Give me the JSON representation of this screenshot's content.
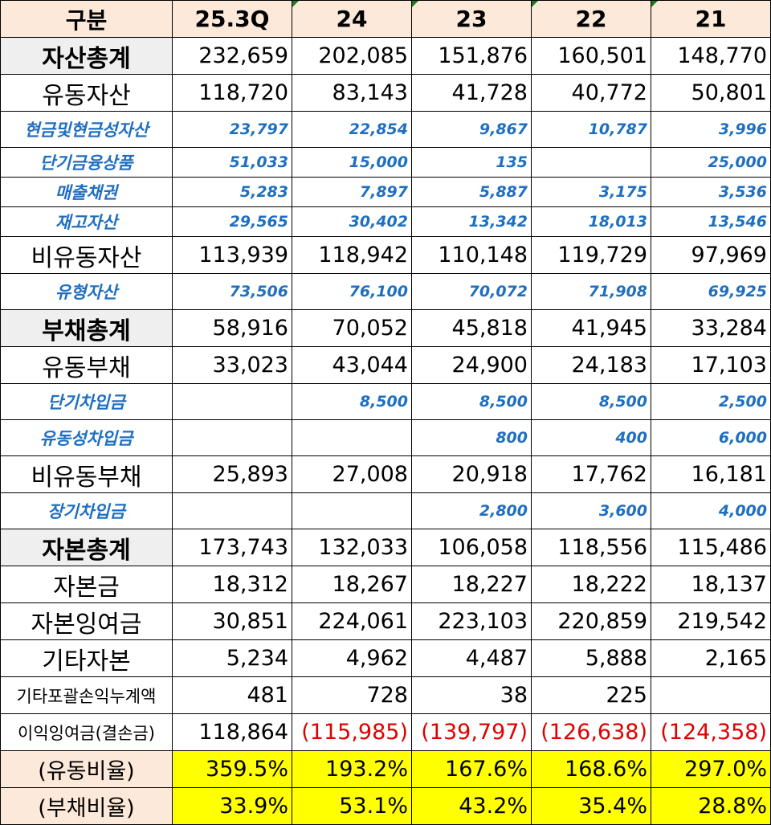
{
  "header": [
    "구분",
    "25.3Q",
    "24",
    "23",
    "22",
    "21"
  ],
  "rows": [
    {
      "label": "자산총계",
      "values": [
        "232,659",
        "202,085",
        "151,876",
        "160,501",
        "148,770"
      ]
    },
    {
      "label": "유동자산",
      "values": [
        "118,720",
        "83,143",
        "41,728",
        "40,772",
        "50,801"
      ]
    },
    {
      "label": "현금및현금성자산",
      "values": [
        "23,797",
        "22,854",
        "9,867",
        "10,787",
        "3,996"
      ]
    },
    {
      "label": "단기금융상품",
      "values": [
        "51,033",
        "15,000",
        "135",
        "",
        "25,000"
      ]
    },
    {
      "label": "매출채권",
      "values": [
        "5,283",
        "7,897",
        "5,887",
        "3,175",
        "3,536"
      ]
    },
    {
      "label": "재고자산",
      "values": [
        "29,565",
        "30,402",
        "13,342",
        "18,013",
        "13,546"
      ]
    },
    {
      "label": "비유동자산",
      "values": [
        "113,939",
        "118,942",
        "110,148",
        "119,729",
        "97,969"
      ]
    },
    {
      "label": "유형자산",
      "values": [
        "73,506",
        "76,100",
        "70,072",
        "71,908",
        "69,925"
      ]
    },
    {
      "label": "부채총계",
      "values": [
        "58,916",
        "70,052",
        "45,818",
        "41,945",
        "33,284"
      ]
    },
    {
      "label": "유동부채",
      "values": [
        "33,023",
        "43,044",
        "24,900",
        "24,183",
        "17,103"
      ]
    },
    {
      "label": "단기차입금",
      "values": [
        "",
        "8,500",
        "8,500",
        "8,500",
        "2,500"
      ]
    },
    {
      "label": "유동성차입금",
      "values": [
        "",
        "",
        "800",
        "400",
        "6,000"
      ]
    },
    {
      "label": "비유동부채",
      "values": [
        "25,893",
        "27,008",
        "20,918",
        "17,762",
        "16,181"
      ]
    },
    {
      "label": "장기차입금",
      "values": [
        "",
        "",
        "2,800",
        "3,600",
        "4,000"
      ]
    },
    {
      "label": "자본총계",
      "values": [
        "173,743",
        "132,033",
        "106,058",
        "118,556",
        "115,486"
      ]
    },
    {
      "label": "자본금",
      "values": [
        "18,312",
        "18,267",
        "18,227",
        "18,222",
        "18,137"
      ]
    },
    {
      "label": "자본잉여금",
      "values": [
        "30,851",
        "224,061",
        "223,103",
        "220,859",
        "219,542"
      ]
    },
    {
      "label": "기타자본",
      "values": [
        "5,234",
        "4,962",
        "4,487",
        "5,888",
        "2,165"
      ]
    },
    {
      "label": "기타포괄손익누계액",
      "values": [
        "481",
        "728",
        "38",
        "225",
        ""
      ]
    },
    {
      "label": "이익잉여금(결손금)",
      "values": [
        "118,864",
        "(115,985)",
        "(139,797)",
        "(126,638)",
        "(124,358)"
      ]
    },
    {
      "label": "(유동비율)",
      "values": [
        "359.5%",
        "193.2%",
        "167.6%",
        "168.6%",
        "297.0%"
      ]
    },
    {
      "label": "(부채비율)",
      "values": [
        "33.9%",
        "53.1%",
        "43.2%",
        "35.4%",
        "28.8%"
      ]
    }
  ],
  "colors": {
    "header_bg": "#fde9d9",
    "sub_text": "#1f6fc1",
    "negative": "#e00000",
    "ratio_bg": "#ffff00"
  }
}
